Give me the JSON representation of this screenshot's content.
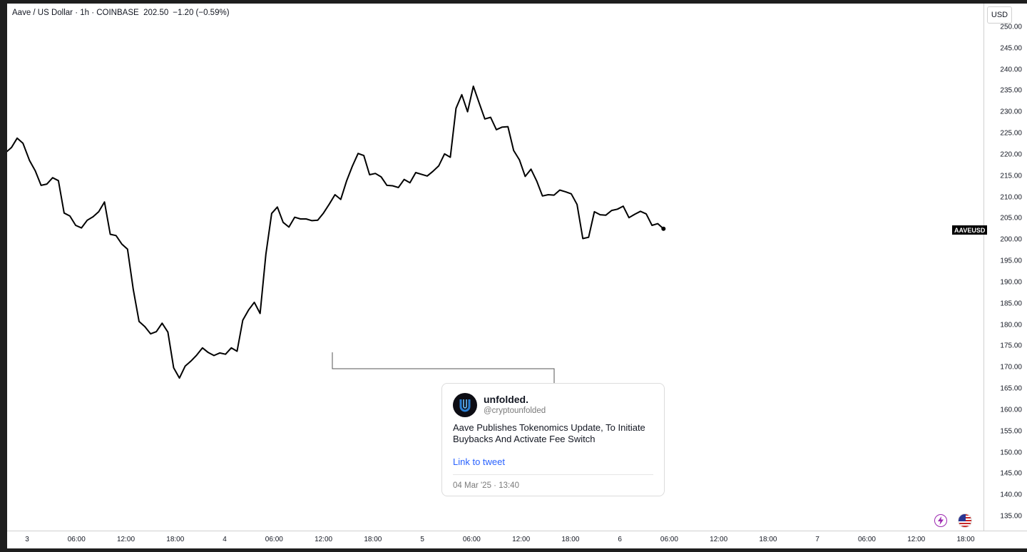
{
  "header": {
    "title": "Aave / US Dollar · 1h · COINBASE",
    "price": "202.50",
    "change": "−1.20 (−0.59%)"
  },
  "axis": {
    "currency": "USD",
    "price_tag": "AAVEUSD"
  },
  "tweet": {
    "name": "unfolded.",
    "handle": "@cryptounfolded",
    "text": "Aave Publishes Tokenomics Update, To Initiate Buybacks And Activate Fee Switch",
    "link_label": "Link to tweet",
    "date": "04 Mar '25 · 13:40"
  },
  "icons": {
    "lightning": "lightning-icon",
    "flag": "us-flag-icon"
  },
  "colors": {
    "line": "#000000",
    "link": "#2962ff",
    "accent_purple": "#9c27b0"
  },
  "chart_data": {
    "type": "line",
    "symbol": "AAVEUSD",
    "ylim": [
      131,
      251
    ],
    "y_ticks": [
      "135.00",
      "140.00",
      "145.00",
      "150.00",
      "155.00",
      "160.00",
      "165.00",
      "170.00",
      "175.00",
      "180.00",
      "185.00",
      "190.00",
      "195.00",
      "200.00",
      "205.00",
      "210.00",
      "215.00",
      "220.00",
      "225.00",
      "230.00",
      "235.00",
      "240.00",
      "245.00",
      "250.00"
    ],
    "x_ticks": [
      "3",
      "06:00",
      "12:00",
      "18:00",
      "4",
      "06:00",
      "12:00",
      "18:00",
      "5",
      "06:00",
      "12:00",
      "18:00",
      "6",
      "06:00",
      "12:00",
      "18:00",
      "7",
      "06:00",
      "12:00",
      "18:00"
    ],
    "x_tick_hours": [
      0,
      6,
      12,
      18,
      24,
      30,
      36,
      42,
      48,
      54,
      60,
      66,
      72,
      78,
      84,
      90,
      96,
      102,
      108,
      114
    ],
    "x_range_hours": [
      -2.6,
      119.5
    ],
    "grid": false,
    "series": [
      {
        "values": [
          [
            -2.6,
            220.5
          ],
          [
            -1.9,
            221.7
          ],
          [
            -1.2,
            223.9
          ],
          [
            -0.5,
            222.7
          ],
          [
            0.3,
            218.6
          ],
          [
            1.0,
            216.2
          ],
          [
            1.7,
            212.8
          ],
          [
            2.4,
            213.1
          ],
          [
            3.1,
            214.6
          ],
          [
            3.8,
            213.9
          ],
          [
            4.5,
            206.3
          ],
          [
            5.2,
            205.6
          ],
          [
            5.9,
            203.4
          ],
          [
            6.6,
            202.8
          ],
          [
            7.3,
            204.6
          ],
          [
            8.0,
            205.4
          ],
          [
            8.7,
            206.6
          ],
          [
            9.4,
            208.9
          ],
          [
            10.1,
            201.3
          ],
          [
            10.8,
            201.0
          ],
          [
            11.5,
            199.0
          ],
          [
            12.2,
            197.8
          ],
          [
            12.9,
            188.3
          ],
          [
            13.6,
            180.8
          ],
          [
            14.3,
            179.6
          ],
          [
            15.0,
            177.9
          ],
          [
            15.7,
            178.4
          ],
          [
            16.4,
            180.4
          ],
          [
            17.1,
            178.3
          ],
          [
            17.8,
            169.9
          ],
          [
            18.5,
            167.5
          ],
          [
            19.2,
            170.3
          ],
          [
            19.9,
            171.5
          ],
          [
            20.6,
            172.9
          ],
          [
            21.3,
            174.6
          ],
          [
            22.0,
            173.5
          ],
          [
            22.7,
            172.8
          ],
          [
            23.4,
            173.4
          ],
          [
            24.1,
            173.1
          ],
          [
            24.8,
            174.6
          ],
          [
            25.5,
            173.8
          ],
          [
            26.2,
            181.1
          ],
          [
            26.9,
            183.5
          ],
          [
            27.6,
            185.3
          ],
          [
            28.3,
            182.7
          ],
          [
            29.0,
            196.6
          ],
          [
            29.7,
            206.2
          ],
          [
            30.4,
            207.7
          ],
          [
            31.1,
            204.1
          ],
          [
            31.8,
            203.0
          ],
          [
            32.5,
            205.3
          ],
          [
            33.2,
            204.9
          ],
          [
            33.9,
            204.9
          ],
          [
            34.6,
            204.5
          ],
          [
            35.3,
            204.6
          ],
          [
            36.0,
            206.3
          ],
          [
            36.7,
            208.4
          ],
          [
            37.4,
            210.6
          ],
          [
            38.1,
            209.5
          ],
          [
            38.8,
            213.8
          ],
          [
            39.5,
            217.3
          ],
          [
            40.2,
            220.3
          ],
          [
            40.9,
            219.8
          ],
          [
            41.6,
            215.3
          ],
          [
            42.3,
            215.6
          ],
          [
            43.0,
            214.8
          ],
          [
            43.7,
            212.8
          ],
          [
            44.4,
            212.7
          ],
          [
            45.1,
            212.3
          ],
          [
            45.8,
            214.2
          ],
          [
            46.5,
            213.4
          ],
          [
            47.2,
            215.8
          ],
          [
            47.9,
            215.4
          ],
          [
            48.6,
            215.0
          ],
          [
            49.3,
            216.1
          ],
          [
            50.0,
            217.4
          ],
          [
            50.7,
            220.2
          ],
          [
            51.4,
            219.4
          ],
          [
            52.1,
            230.9
          ],
          [
            52.8,
            234.1
          ],
          [
            53.5,
            230.1
          ],
          [
            54.2,
            236.1
          ],
          [
            54.9,
            232.2
          ],
          [
            55.6,
            228.4
          ],
          [
            56.3,
            228.8
          ],
          [
            57.0,
            225.9
          ],
          [
            57.7,
            226.5
          ],
          [
            58.4,
            226.6
          ],
          [
            59.1,
            221.0
          ],
          [
            59.8,
            218.8
          ],
          [
            60.5,
            214.9
          ],
          [
            61.2,
            216.6
          ],
          [
            61.9,
            213.8
          ],
          [
            62.6,
            210.3
          ],
          [
            63.3,
            210.6
          ],
          [
            64.0,
            210.5
          ],
          [
            64.7,
            211.7
          ],
          [
            65.4,
            211.3
          ],
          [
            66.1,
            210.8
          ],
          [
            66.8,
            208.3
          ],
          [
            67.5,
            200.3
          ],
          [
            68.2,
            200.6
          ],
          [
            68.9,
            206.6
          ],
          [
            69.6,
            205.9
          ],
          [
            70.3,
            205.8
          ],
          [
            71.0,
            206.9
          ],
          [
            71.7,
            207.2
          ],
          [
            72.4,
            207.9
          ],
          [
            73.1,
            205.2
          ],
          [
            73.8,
            206.0
          ],
          [
            74.5,
            206.7
          ],
          [
            75.2,
            206.1
          ],
          [
            75.9,
            203.4
          ],
          [
            76.6,
            203.8
          ],
          [
            77.3,
            202.6
          ]
        ]
      }
    ]
  }
}
